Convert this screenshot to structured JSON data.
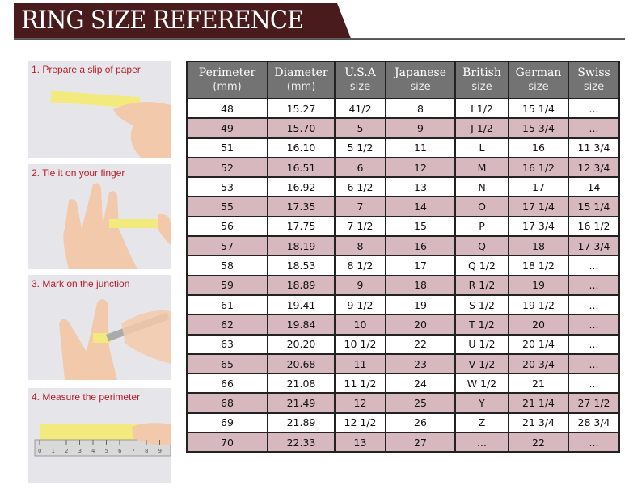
{
  "title": "RING SIZE REFERENCE",
  "steps": [
    {
      "label": "1. Prepare a slip of paper"
    },
    {
      "label": "2. Tie it on your finger"
    },
    {
      "label": "3. Mark on the junction"
    },
    {
      "label": "4. Measure the perimeter"
    }
  ],
  "ruler_ticks": [
    "0",
    "1",
    "2",
    "3",
    "4",
    "5",
    "6",
    "7",
    "8",
    "9"
  ],
  "table": {
    "columns": [
      {
        "title": "Perimeter",
        "unit": "(mm)"
      },
      {
        "title": "Diameter",
        "unit": "(mm)"
      },
      {
        "title": "U.S.A",
        "unit": "size"
      },
      {
        "title": "Japanese",
        "unit": "size"
      },
      {
        "title": "British",
        "unit": "size"
      },
      {
        "title": "German",
        "unit": "size"
      },
      {
        "title": "Swiss",
        "unit": "size"
      }
    ],
    "rows": [
      [
        "48",
        "15.27",
        "41/2",
        "8",
        "I 1/2",
        "15 1/4",
        "..."
      ],
      [
        "49",
        "15.70",
        "5",
        "9",
        "J 1/2",
        "15 3/4",
        "..."
      ],
      [
        "51",
        "16.10",
        "5 1/2",
        "11",
        "L",
        "16",
        "11 3/4"
      ],
      [
        "52",
        "16.51",
        "6",
        "12",
        "M",
        "16 1/2",
        "12 3/4"
      ],
      [
        "53",
        "16.92",
        "6 1/2",
        "13",
        "N",
        "17",
        "14"
      ],
      [
        "55",
        "17.35",
        "7",
        "14",
        "O",
        "17 1/4",
        "15 1/4"
      ],
      [
        "56",
        "17.75",
        "7 1/2",
        "15",
        "P",
        "17 3/4",
        "16 1/2"
      ],
      [
        "57",
        "18.19",
        "8",
        "16",
        "Q",
        "18",
        "17 3/4"
      ],
      [
        "58",
        "18.53",
        "8 1/2",
        "17",
        "Q  1/2",
        "18 1/2",
        "..."
      ],
      [
        "59",
        "18.89",
        "9",
        "18",
        "R 1/2",
        "19",
        "..."
      ],
      [
        "61",
        "19.41",
        "9 1/2",
        "19",
        "S 1/2",
        "19 1/2",
        "..."
      ],
      [
        "62",
        "19.84",
        "10",
        "20",
        "T 1/2",
        "20",
        "..."
      ],
      [
        "63",
        "20.20",
        "10 1/2",
        "22",
        "U 1/2",
        "20 1/4",
        "..."
      ],
      [
        "65",
        "20.68",
        "11",
        "23",
        "V 1/2",
        "20 3/4",
        "..."
      ],
      [
        "66",
        "21.08",
        "11 1/2",
        "24",
        "W 1/2",
        "21",
        "..."
      ],
      [
        "68",
        "21.49",
        "12",
        "25",
        "Y",
        "21 1/4",
        "27 1/2"
      ],
      [
        "69",
        "21.89",
        "12 1/2",
        "26",
        "Z",
        "21 3/4",
        "28 3/4"
      ],
      [
        "70",
        "22.33",
        "13",
        "27",
        "...",
        "22",
        "..."
      ]
    ]
  },
  "colors": {
    "banner": "#4a1b1d",
    "header": "#737373",
    "alt_row": "#d8b8bf",
    "step_caption": "#b51c2a"
  }
}
